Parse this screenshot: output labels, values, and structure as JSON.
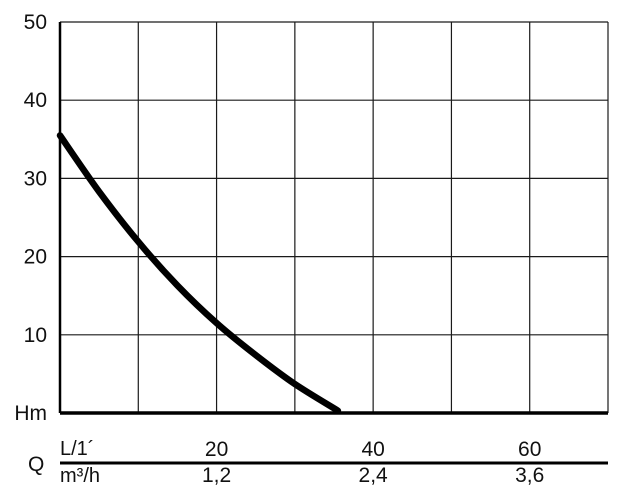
{
  "chart_data": {
    "type": "line",
    "title": "",
    "ylabel": "Hm",
    "xlabel": "Q",
    "flow_units": {
      "primary": "L/1´",
      "secondary": "m³/h"
    },
    "ylim": [
      0,
      50
    ],
    "xlim": [
      0,
      70
    ],
    "y_ticks": [
      "10",
      "20",
      "30",
      "40",
      "50"
    ],
    "y_tick_values": [
      10,
      20,
      30,
      40,
      50
    ],
    "x_ticks_primary": [
      "20",
      "40",
      "60"
    ],
    "x_ticks_secondary": [
      "1,2",
      "2,4",
      "3,6"
    ],
    "x_tick_values": [
      20,
      40,
      60
    ],
    "grid": true,
    "grid_x_values": [
      10,
      20,
      30,
      40,
      50,
      60,
      70
    ],
    "grid_y_values": [
      10,
      20,
      30,
      40,
      50
    ],
    "series": [
      {
        "x": [
          0,
          5,
          10,
          15,
          20,
          25,
          30,
          35.5
        ],
        "y": [
          35.5,
          28.3,
          21.9,
          16.3,
          11.5,
          7.4,
          3.7,
          0.3
        ]
      }
    ],
    "colors": {
      "curve": "#000000",
      "grid": "#1a1a1a",
      "axis": "#000000"
    }
  }
}
